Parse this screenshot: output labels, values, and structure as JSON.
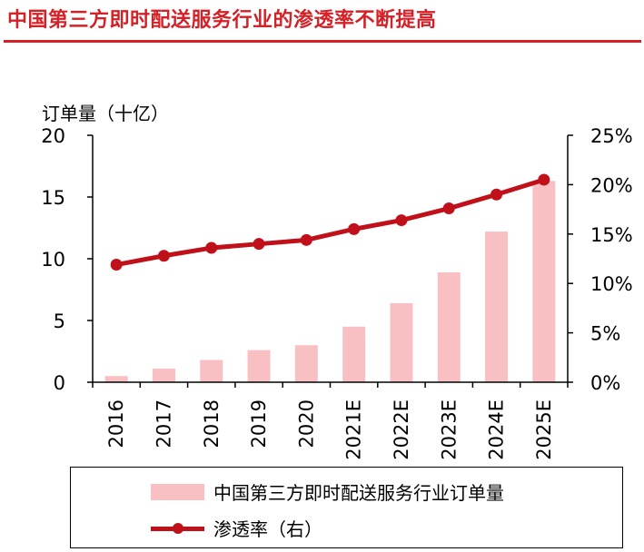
{
  "header": {
    "title": "中国第三方即时配送服务行业的渗透率不断提高"
  },
  "legend": {
    "bar_label": "中国第三方即时配送服务行业订单量",
    "line_label": "渗透率（右）"
  },
  "colors": {
    "accent": "#d42027",
    "bar": "#f9c0c4",
    "line": "#c0101a"
  },
  "chart_data": {
    "type": "bar+line",
    "title": "中国第三方即时配送服务行业的渗透率不断提高",
    "categories": [
      "2016",
      "2017",
      "2018",
      "2019",
      "2020",
      "2021E",
      "2022E",
      "2023E",
      "2024E",
      "2025E"
    ],
    "y_left_label": "订单量（十亿）",
    "y_left_range": [
      0,
      20
    ],
    "y_left_ticks": [
      "0",
      "5",
      "10",
      "15",
      "20"
    ],
    "y_right_range": [
      0,
      25
    ],
    "y_right_ticks": [
      "0%",
      "5%",
      "10%",
      "15%",
      "20%",
      "25%"
    ],
    "series": [
      {
        "name": "中国第三方即时配送服务行业订单量",
        "type": "bar",
        "axis": "left",
        "values": [
          0.5,
          1.1,
          1.8,
          2.6,
          3.0,
          4.5,
          6.4,
          8.9,
          12.2,
          16.3
        ]
      },
      {
        "name": "渗透率（右）",
        "type": "line",
        "axis": "right",
        "values": [
          11.9,
          12.8,
          13.6,
          14.0,
          14.4,
          15.5,
          16.4,
          17.6,
          19.0,
          20.5
        ]
      }
    ],
    "grid": false,
    "legend_position": "bottom"
  }
}
